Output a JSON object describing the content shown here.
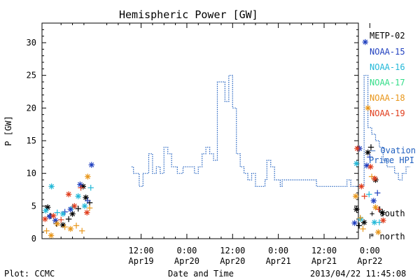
{
  "chart_data": {
    "type": "scatter",
    "title": "Hemispheric Power [GW]",
    "ylabel": "P [GW]",
    "xlabel": "Date and Time",
    "ylim": [
      0,
      33
    ],
    "yticks": [
      0,
      5,
      10,
      15,
      20,
      25,
      30
    ],
    "xrange_hours": [
      -14,
      69
    ],
    "xticks": [
      {
        "hour": 12,
        "time": "12:00",
        "date": "Apr19"
      },
      {
        "hour": 24,
        "time": "0:00",
        "date": "Apr20"
      },
      {
        "hour": 36,
        "time": "12:00",
        "date": "Apr20"
      },
      {
        "hour": 48,
        "time": "0:00",
        "date": "Apr21"
      },
      {
        "hour": 60,
        "time": "12:00",
        "date": "Apr21"
      },
      {
        "hour": 72,
        "time": "0:00",
        "date": "Apr22"
      }
    ],
    "x_axis_note": "x values are hours since 2013-04-19 00:00",
    "footer_left": "Plot: CCMC",
    "footer_right": "2013/04/22 11:45:08",
    "legend": [
      {
        "name": "METP-02",
        "color": "#000000"
      },
      {
        "name": "NOAA-15",
        "color": "#1f3fbf"
      },
      {
        "name": "NOAA-16",
        "color": "#22b8d8"
      },
      {
        "name": "NOAA-17",
        "color": "#33dd88"
      },
      {
        "name": "NOAA-18",
        "color": "#e8961a"
      },
      {
        "name": "NOAA-19",
        "color": "#e03c1c"
      }
    ],
    "ovation": {
      "label_line1": "– Ovation",
      "label_line2": "Prime HPI",
      "color": "#1f5fbf",
      "steps": [
        [
          9.5,
          11
        ],
        [
          10.0,
          10
        ],
        [
          11.5,
          8
        ],
        [
          12.5,
          10
        ],
        [
          14.0,
          13
        ],
        [
          15.0,
          10
        ],
        [
          16.0,
          11
        ],
        [
          17.0,
          10
        ],
        [
          18.0,
          14
        ],
        [
          19.0,
          13
        ],
        [
          20.0,
          11
        ],
        [
          21.5,
          10
        ],
        [
          23.0,
          11
        ],
        [
          24.5,
          11
        ],
        [
          26.0,
          10
        ],
        [
          27.0,
          11
        ],
        [
          28.0,
          13
        ],
        [
          29.0,
          14
        ],
        [
          30.0,
          13
        ],
        [
          31.0,
          12
        ],
        [
          32.0,
          24
        ],
        [
          34.0,
          21
        ],
        [
          35.0,
          25
        ],
        [
          36.0,
          20
        ],
        [
          37.0,
          13
        ],
        [
          38.0,
          11
        ],
        [
          39.0,
          10
        ],
        [
          40.0,
          9
        ],
        [
          41.0,
          10
        ],
        [
          42.0,
          8
        ],
        [
          44.5,
          9
        ],
        [
          45.0,
          12
        ],
        [
          46.0,
          11
        ],
        [
          47.0,
          9
        ],
        [
          48.5,
          8
        ],
        [
          49.0,
          9
        ],
        [
          51.0,
          9
        ],
        [
          56.0,
          9
        ],
        [
          58.0,
          8
        ],
        [
          63.0,
          8
        ],
        [
          65.0,
          8
        ],
        [
          66.0,
          9
        ],
        [
          67.0,
          8
        ],
        [
          68.5,
          8
        ],
        [
          70.5,
          25
        ],
        [
          71.5,
          17
        ],
        [
          72.5,
          16
        ],
        [
          73.5,
          15
        ],
        [
          74.5,
          14
        ],
        [
          75.5,
          12
        ],
        [
          76.5,
          11
        ],
        [
          77.5,
          11
        ],
        [
          78.5,
          10
        ],
        [
          79.5,
          9
        ],
        [
          80.5,
          10
        ],
        [
          81.5,
          11
        ]
      ]
    },
    "series": [
      {
        "name": "METP-02",
        "color": "#000000",
        "points": [
          {
            "x": -12.5,
            "y": 4.8,
            "m": "north"
          },
          {
            "x": -11.8,
            "y": 3.5,
            "m": "south"
          },
          {
            "x": -10.2,
            "y": 2.3,
            "m": "south"
          },
          {
            "x": -8.5,
            "y": 2.1,
            "m": "north"
          },
          {
            "x": -7.0,
            "y": 3.0,
            "m": "south"
          },
          {
            "x": -6.0,
            "y": 3.8,
            "m": "north"
          },
          {
            "x": -4.5,
            "y": 4.6,
            "m": "south"
          },
          {
            "x": -3.2,
            "y": 8.0,
            "m": "north"
          },
          {
            "x": -2.5,
            "y": 6.3,
            "m": "north"
          },
          {
            "x": -1.5,
            "y": 5.5,
            "m": "south"
          },
          {
            "x": 68.5,
            "y": 4.5,
            "m": "north"
          },
          {
            "x": 69.2,
            "y": 2.0,
            "m": "south"
          },
          {
            "x": 70.5,
            "y": 2.5,
            "m": "north"
          },
          {
            "x": 71.5,
            "y": 13.2,
            "m": "north"
          },
          {
            "x": 72.3,
            "y": 14.0,
            "m": "south"
          },
          {
            "x": 73.5,
            "y": 9.0,
            "m": "north"
          },
          {
            "x": 74.6,
            "y": 4.5,
            "m": "south"
          },
          {
            "x": 75.3,
            "y": 4.0,
            "m": "north"
          }
        ]
      },
      {
        "name": "NOAA-15",
        "color": "#1f3fbf",
        "points": [
          {
            "x": -12.0,
            "y": 3.4,
            "m": "north"
          },
          {
            "x": -10.5,
            "y": 2.8,
            "m": "north"
          },
          {
            "x": -8.0,
            "y": 4.1,
            "m": "south"
          },
          {
            "x": -6.5,
            "y": 4.5,
            "m": "north"
          },
          {
            "x": -4.0,
            "y": 8.3,
            "m": "north"
          },
          {
            "x": -2.0,
            "y": 5.8,
            "m": "south"
          },
          {
            "x": -1.0,
            "y": 11.3,
            "m": "north"
          },
          {
            "x": 68.0,
            "y": 2.4,
            "m": "north"
          },
          {
            "x": 69.3,
            "y": 13.8,
            "m": "north"
          },
          {
            "x": 70.8,
            "y": 30.1,
            "m": "north"
          },
          {
            "x": 71.2,
            "y": 11.2,
            "m": "north"
          },
          {
            "x": 72.0,
            "y": 12.5,
            "m": "south"
          },
          {
            "x": 73.0,
            "y": 5.8,
            "m": "north"
          },
          {
            "x": 74.0,
            "y": 7.0,
            "m": "south"
          }
        ]
      },
      {
        "name": "NOAA-16",
        "color": "#22b8d8",
        "points": [
          {
            "x": -13.0,
            "y": 4.3,
            "m": "north"
          },
          {
            "x": -11.5,
            "y": 8.0,
            "m": "north"
          },
          {
            "x": -10.0,
            "y": 4.0,
            "m": "south"
          },
          {
            "x": -8.5,
            "y": 3.8,
            "m": "north"
          },
          {
            "x": -6.0,
            "y": 4.8,
            "m": "south"
          },
          {
            "x": -4.5,
            "y": 6.5,
            "m": "north"
          },
          {
            "x": -2.8,
            "y": 5.0,
            "m": "north"
          },
          {
            "x": -1.2,
            "y": 7.8,
            "m": "south"
          },
          {
            "x": 68.5,
            "y": 11.5,
            "m": "north"
          },
          {
            "x": 69.6,
            "y": 3.0,
            "m": "north"
          },
          {
            "x": 71.8,
            "y": 6.8,
            "m": "south"
          },
          {
            "x": 73.2,
            "y": 2.5,
            "m": "north"
          },
          {
            "x": 74.5,
            "y": 2.5,
            "m": "south"
          }
        ]
      },
      {
        "name": "NOAA-17",
        "color": "#33dd88",
        "points": []
      },
      {
        "name": "NOAA-18",
        "color": "#e8961a",
        "points": [
          {
            "x": -12.8,
            "y": 1.2,
            "m": "south"
          },
          {
            "x": -11.6,
            "y": 0.5,
            "m": "north"
          },
          {
            "x": -10.0,
            "y": 2.3,
            "m": "north"
          },
          {
            "x": -8.0,
            "y": 1.8,
            "m": "south"
          },
          {
            "x": -6.5,
            "y": 1.5,
            "m": "north"
          },
          {
            "x": -5.0,
            "y": 2.0,
            "m": "south"
          },
          {
            "x": -3.5,
            "y": 1.2,
            "m": "south"
          },
          {
            "x": -2.0,
            "y": 9.5,
            "m": "north"
          },
          {
            "x": -1.5,
            "y": 4.7,
            "m": "south"
          },
          {
            "x": 68.3,
            "y": 6.5,
            "m": "north"
          },
          {
            "x": 69.5,
            "y": 3.2,
            "m": "south"
          },
          {
            "x": 70.2,
            "y": 1.5,
            "m": "south"
          },
          {
            "x": 71.5,
            "y": 20.0,
            "m": "north"
          },
          {
            "x": 72.5,
            "y": 9.5,
            "m": "south"
          },
          {
            "x": 73.5,
            "y": 4.8,
            "m": "north"
          },
          {
            "x": 74.2,
            "y": 1.0,
            "m": "north"
          }
        ]
      },
      {
        "name": "NOAA-19",
        "color": "#e03c1c",
        "points": [
          {
            "x": -13.2,
            "y": 3.0,
            "m": "north"
          },
          {
            "x": -11.0,
            "y": 3.5,
            "m": "north"
          },
          {
            "x": -9.0,
            "y": 2.9,
            "m": "south"
          },
          {
            "x": -7.0,
            "y": 6.8,
            "m": "north"
          },
          {
            "x": -5.5,
            "y": 5.0,
            "m": "north"
          },
          {
            "x": -3.8,
            "y": 7.8,
            "m": "south"
          },
          {
            "x": -2.2,
            "y": 4.0,
            "m": "north"
          },
          {
            "x": 68.7,
            "y": 13.8,
            "m": "north"
          },
          {
            "x": 69.8,
            "y": 8.0,
            "m": "north"
          },
          {
            "x": 70.6,
            "y": 6.5,
            "m": "south"
          },
          {
            "x": 72.2,
            "y": 11.0,
            "m": "north"
          },
          {
            "x": 73.3,
            "y": 9.2,
            "m": "north"
          },
          {
            "x": 74.3,
            "y": 4.5,
            "m": "south"
          },
          {
            "x": 75.5,
            "y": 2.8,
            "m": "north"
          }
        ]
      }
    ],
    "marker_key": [
      {
        "symbol": "+",
        "label": "south"
      },
      {
        "symbol": "*",
        "label": "north"
      }
    ]
  }
}
